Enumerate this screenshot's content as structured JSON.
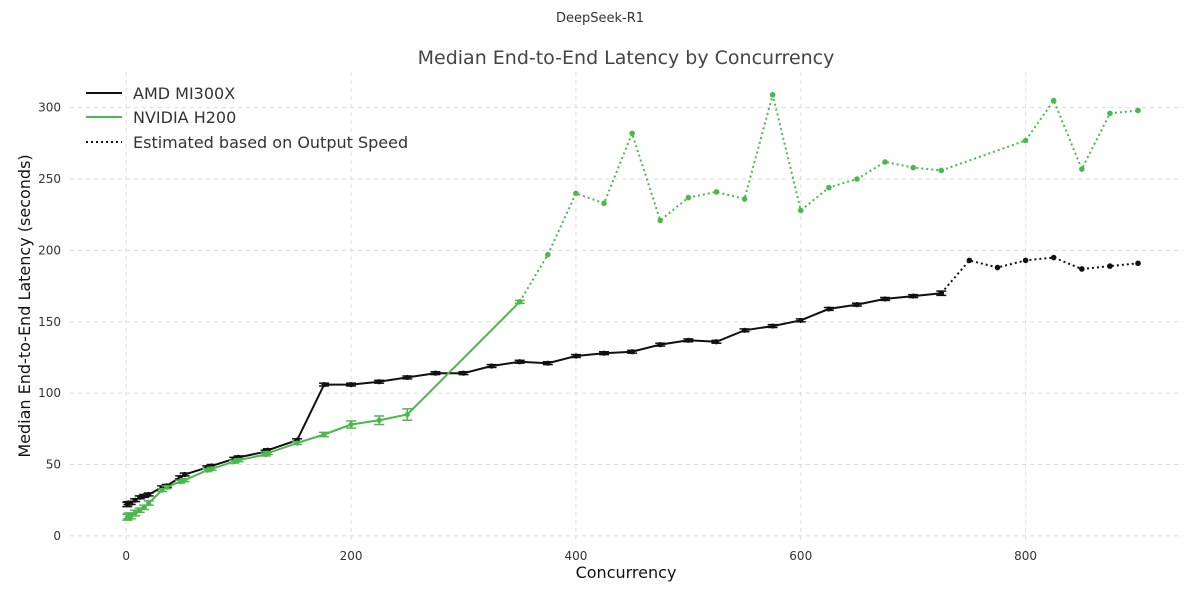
{
  "chart_data": {
    "type": "line",
    "suptitle": "DeepSeek-R1",
    "title": "Median End-to-End Latency by Concurrency",
    "xlabel": "Concurrency",
    "ylabel": "Median End-to-End Latency (seconds)",
    "xlim": [
      -50,
      940
    ],
    "ylim": [
      -5,
      325
    ],
    "xticks": [
      0,
      200,
      400,
      600,
      800
    ],
    "yticks": [
      0,
      50,
      100,
      150,
      200,
      250,
      300
    ],
    "grid": true,
    "legend_position": "top-left",
    "legend": {
      "items": [
        {
          "label": "AMD MI300X",
          "style": "solid",
          "color": "#111111"
        },
        {
          "label": "NVIDIA H200",
          "style": "solid",
          "color": "#4bb84b"
        },
        {
          "label": "Estimated based on Output Speed",
          "style": "dotted",
          "color": "#111111"
        }
      ]
    },
    "series": [
      {
        "name": "AMD MI300X",
        "color": "#111111",
        "measured": {
          "x": [
            1,
            2,
            4,
            8,
            12,
            16,
            20,
            32,
            36,
            48,
            52,
            72,
            76,
            96,
            100,
            124,
            126,
            152,
            176,
            200,
            225,
            250,
            275,
            300,
            325,
            350,
            375,
            400,
            425,
            450,
            475,
            500,
            525,
            550,
            575,
            600,
            625,
            650,
            675,
            700,
            725
          ],
          "y": [
            22,
            23,
            23,
            25,
            27,
            28,
            29,
            34,
            35,
            41,
            43,
            48,
            49,
            54,
            55,
            59,
            60,
            67,
            106,
            106,
            108,
            111,
            114,
            114,
            119,
            122,
            121,
            126,
            128,
            129,
            134,
            137,
            136,
            144,
            147,
            151,
            159,
            162,
            166,
            168,
            170
          ],
          "err": [
            1.5,
            1,
            1,
            1,
            1,
            1,
            1,
            1,
            1,
            1,
            1,
            1,
            1,
            1,
            1,
            1,
            1,
            1,
            1,
            1,
            1,
            1,
            1,
            1,
            1,
            1,
            1,
            1,
            1,
            1,
            1,
            1,
            1,
            1,
            1,
            1,
            1,
            1,
            1,
            1,
            1.5
          ]
        },
        "estimated": {
          "x": [
            725,
            750,
            775,
            800,
            825,
            850,
            875,
            900
          ],
          "y": [
            170,
            193,
            188,
            193,
            195,
            187,
            189,
            191
          ]
        }
      },
      {
        "name": "NVIDIA H200",
        "color": "#4bb84b",
        "measured": {
          "x": [
            1,
            2,
            4,
            8,
            12,
            16,
            20,
            32,
            36,
            48,
            52,
            72,
            76,
            96,
            100,
            124,
            126,
            152,
            176,
            200,
            225,
            250,
            350
          ],
          "y": [
            13,
            14,
            14,
            16,
            18,
            20,
            23,
            32,
            34,
            38,
            39,
            46,
            47,
            52,
            53,
            57,
            58,
            65,
            71,
            78,
            81,
            85,
            164
          ],
          "err": [
            2,
            2,
            2,
            2,
            1.5,
            1.5,
            1.5,
            1,
            1,
            1,
            1,
            1,
            1,
            1,
            1,
            1,
            1,
            1,
            1.5,
            2.5,
            3,
            4,
            1
          ]
        },
        "estimated": {
          "x": [
            350,
            375,
            400,
            425,
            450,
            475,
            500,
            525,
            550,
            575,
            600,
            625,
            650,
            675,
            700,
            725,
            800,
            825,
            850,
            875,
            900
          ],
          "y": [
            164,
            197,
            240,
            233,
            282,
            221,
            237,
            241,
            236,
            309,
            228,
            244,
            250,
            262,
            258,
            256,
            277,
            305,
            257,
            296,
            298
          ]
        }
      }
    ]
  }
}
